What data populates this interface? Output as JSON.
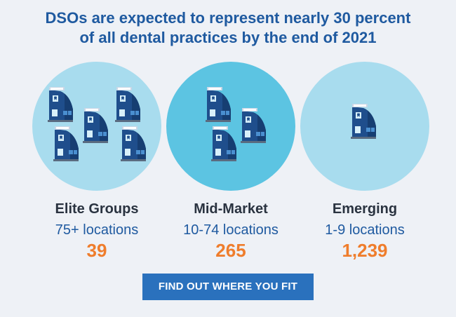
{
  "headline": {
    "line1": "DSOs are expected to represent nearly 30 percent",
    "line2": "of all dental practices by the end of 2021"
  },
  "tiers": [
    {
      "name": "Elite Groups",
      "range": "75+ locations",
      "count": "39",
      "icon": "dental-building-icon"
    },
    {
      "name": "Mid-Market",
      "range": "10-74 locations",
      "count": "265",
      "icon": "dental-building-icon"
    },
    {
      "name": "Emerging",
      "range": "1-9 locations",
      "count": "1,239",
      "icon": "dental-building-icon"
    }
  ],
  "cta": {
    "label": "FIND OUT WHERE YOU FIT"
  },
  "colors": {
    "background": "#eef1f6",
    "headline": "#1f5aa0",
    "circle_light": "#a8dcee",
    "circle_mid": "#5cc4e2",
    "count": "#ef7d2c",
    "button": "#2a71bd"
  }
}
